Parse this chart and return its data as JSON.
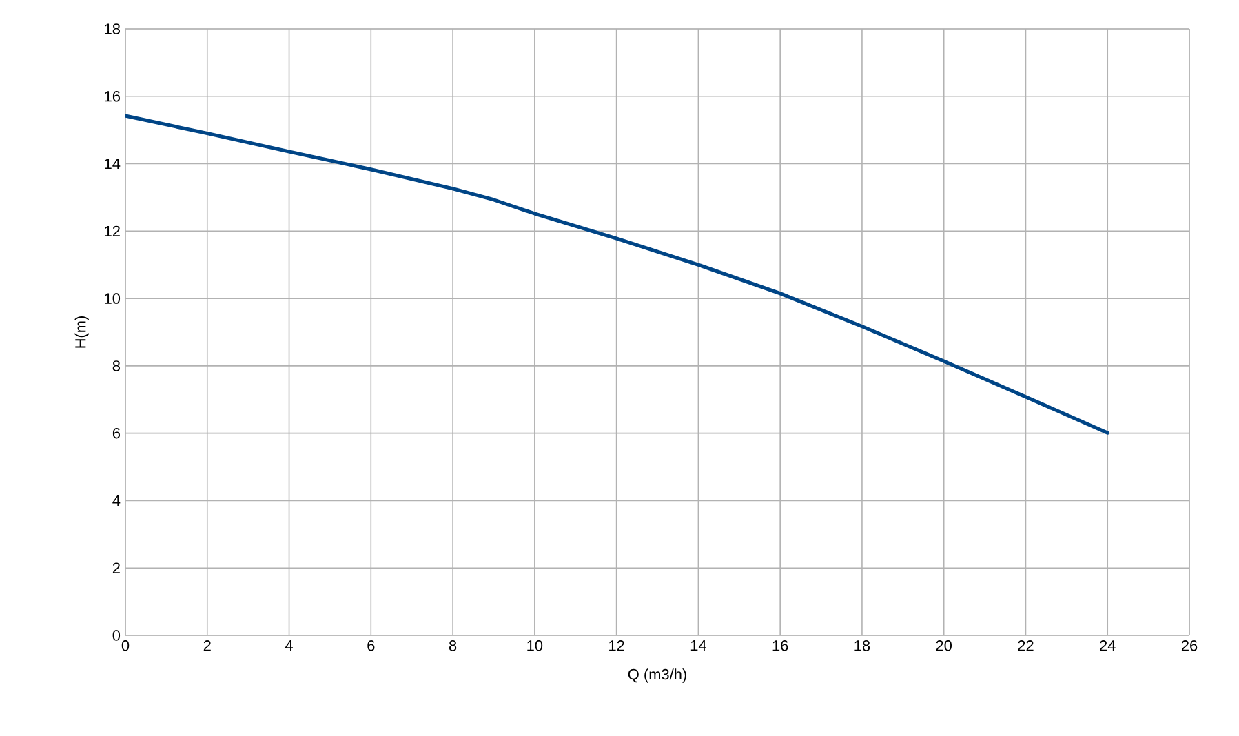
{
  "chart_data": {
    "type": "line",
    "xlabel": "Q (m3/h)",
    "ylabel": "H(m)",
    "x": [
      0,
      2,
      4,
      6,
      8,
      9,
      10,
      12,
      14,
      16,
      18,
      20,
      22,
      24
    ],
    "series": [
      {
        "color": "#004586",
        "values": [
          15.42,
          14.9,
          14.36,
          13.83,
          13.26,
          12.93,
          12.52,
          11.78,
          11.0,
          10.15,
          9.17,
          8.14,
          7.08,
          6.01
        ]
      }
    ],
    "xlim": [
      0,
      26
    ],
    "ylim": [
      0,
      18
    ],
    "xticks": [
      0,
      2,
      4,
      6,
      8,
      10,
      12,
      14,
      16,
      18,
      20,
      22,
      24,
      26
    ],
    "yticks": [
      0,
      2,
      4,
      6,
      8,
      10,
      12,
      14,
      16,
      18
    ],
    "grid": true,
    "marker": "none",
    "line_style": "solid"
  }
}
